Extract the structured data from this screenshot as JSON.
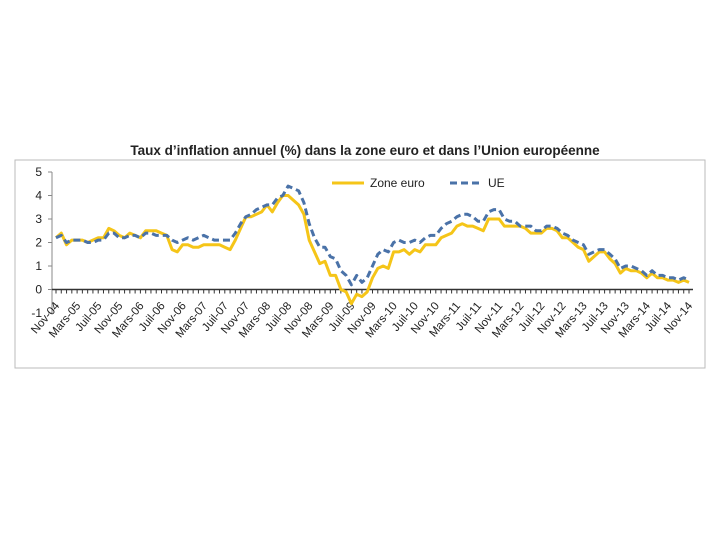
{
  "chart_data": {
    "type": "line",
    "title": "Taux d’inflation annuel (%) dans la zone euro et dans l’Union européenne",
    "categories": [
      "Nov-04",
      null,
      null,
      null,
      "Mars-05",
      null,
      null,
      null,
      "Juil-05",
      null,
      null,
      null,
      "Nov-05",
      null,
      null,
      null,
      "Mars-06",
      null,
      null,
      null,
      "Juil-06",
      null,
      null,
      null,
      "Nov-06",
      null,
      null,
      null,
      "Mars-07",
      null,
      null,
      null,
      "Juil-07",
      null,
      null,
      null,
      "Nov-07",
      null,
      null,
      null,
      "Mars-08",
      null,
      null,
      null,
      "Juil-08",
      null,
      null,
      null,
      "Nov-08",
      null,
      null,
      null,
      "Mars-09",
      null,
      null,
      null,
      "Juil-09",
      null,
      null,
      null,
      "Nov-09",
      null,
      null,
      null,
      "Mars-10",
      null,
      null,
      null,
      "Juil-10",
      null,
      null,
      null,
      "Nov-10",
      null,
      null,
      null,
      "Mars-11",
      null,
      null,
      null,
      "Juil-11",
      null,
      null,
      null,
      "Nov-11",
      null,
      null,
      null,
      "Mars-12",
      null,
      null,
      null,
      "Juil-12",
      null,
      null,
      null,
      "Nov-12",
      null,
      null,
      null,
      "Mars-13",
      null,
      null,
      null,
      "Juil-13",
      null,
      null,
      null,
      "Nov-13",
      null,
      null,
      null,
      "Mars-14",
      null,
      null,
      null,
      "Juil-14",
      null,
      null,
      null,
      "Nov-14"
    ],
    "series": [
      {
        "name": "Zone euro",
        "color": "#f5c518",
        "dashed": false,
        "values": [
          2.2,
          2.4,
          1.9,
          2.1,
          2.1,
          2.1,
          2.0,
          2.1,
          2.2,
          2.2,
          2.6,
          2.5,
          2.3,
          2.2,
          2.4,
          2.3,
          2.2,
          2.5,
          2.5,
          2.5,
          2.4,
          2.3,
          1.7,
          1.6,
          1.9,
          1.9,
          1.8,
          1.8,
          1.9,
          1.9,
          1.9,
          1.9,
          1.8,
          1.7,
          2.1,
          2.6,
          3.1,
          3.1,
          3.2,
          3.3,
          3.6,
          3.3,
          3.7,
          4.0,
          4.0,
          3.8,
          3.6,
          3.2,
          2.1,
          1.6,
          1.1,
          1.2,
          0.6,
          0.6,
          0.0,
          -0.1,
          -0.6,
          -0.2,
          -0.3,
          -0.1,
          0.5,
          0.9,
          1.0,
          0.9,
          1.6,
          1.6,
          1.7,
          1.5,
          1.7,
          1.6,
          1.9,
          1.9,
          1.9,
          2.2,
          2.3,
          2.4,
          2.7,
          2.8,
          2.7,
          2.7,
          2.6,
          2.5,
          3.0,
          3.0,
          3.0,
          2.7,
          2.7,
          2.7,
          2.7,
          2.6,
          2.4,
          2.4,
          2.4,
          2.6,
          2.6,
          2.5,
          2.2,
          2.2,
          2.0,
          1.8,
          1.7,
          1.2,
          1.4,
          1.6,
          1.6,
          1.3,
          1.1,
          0.7,
          0.9,
          0.8,
          0.8,
          0.7,
          0.5,
          0.7,
          0.5,
          0.5,
          0.4,
          0.4,
          0.3,
          0.4,
          0.3
        ]
      },
      {
        "name": "UE",
        "color": "#4a72a8",
        "dashed": true,
        "values": [
          2.2,
          2.3,
          2.0,
          2.1,
          2.1,
          2.1,
          2.0,
          2.0,
          2.1,
          2.1,
          2.4,
          2.4,
          2.2,
          2.2,
          2.3,
          2.3,
          2.2,
          2.4,
          2.4,
          2.3,
          2.3,
          2.3,
          2.1,
          2.0,
          2.1,
          2.2,
          2.1,
          2.2,
          2.3,
          2.2,
          2.1,
          2.1,
          2.1,
          2.1,
          2.4,
          2.8,
          3.1,
          3.2,
          3.4,
          3.5,
          3.6,
          3.6,
          3.9,
          4.0,
          4.4,
          4.3,
          4.2,
          3.7,
          2.8,
          2.2,
          1.8,
          1.8,
          1.4,
          1.3,
          0.8,
          0.6,
          0.2,
          0.6,
          0.3,
          0.5,
          1.0,
          1.5,
          1.7,
          1.6,
          2.0,
          2.1,
          2.0,
          2.0,
          2.1,
          2.0,
          2.2,
          2.3,
          2.3,
          2.6,
          2.8,
          2.9,
          3.1,
          3.2,
          3.2,
          3.1,
          2.9,
          2.9,
          3.3,
          3.4,
          3.4,
          3.0,
          2.9,
          2.9,
          2.7,
          2.7,
          2.7,
          2.5,
          2.5,
          2.7,
          2.7,
          2.6,
          2.4,
          2.3,
          2.1,
          2.0,
          1.9,
          1.5,
          1.6,
          1.7,
          1.7,
          1.5,
          1.3,
          0.9,
          1.0,
          1.0,
          0.9,
          0.8,
          0.6,
          0.8,
          0.6,
          0.6,
          0.5,
          0.5,
          0.4,
          0.5,
          0.4
        ]
      }
    ],
    "ylim": [
      -1,
      5
    ],
    "yticks": [
      -1,
      0,
      1,
      2,
      3,
      4,
      5
    ],
    "grid": false
  }
}
